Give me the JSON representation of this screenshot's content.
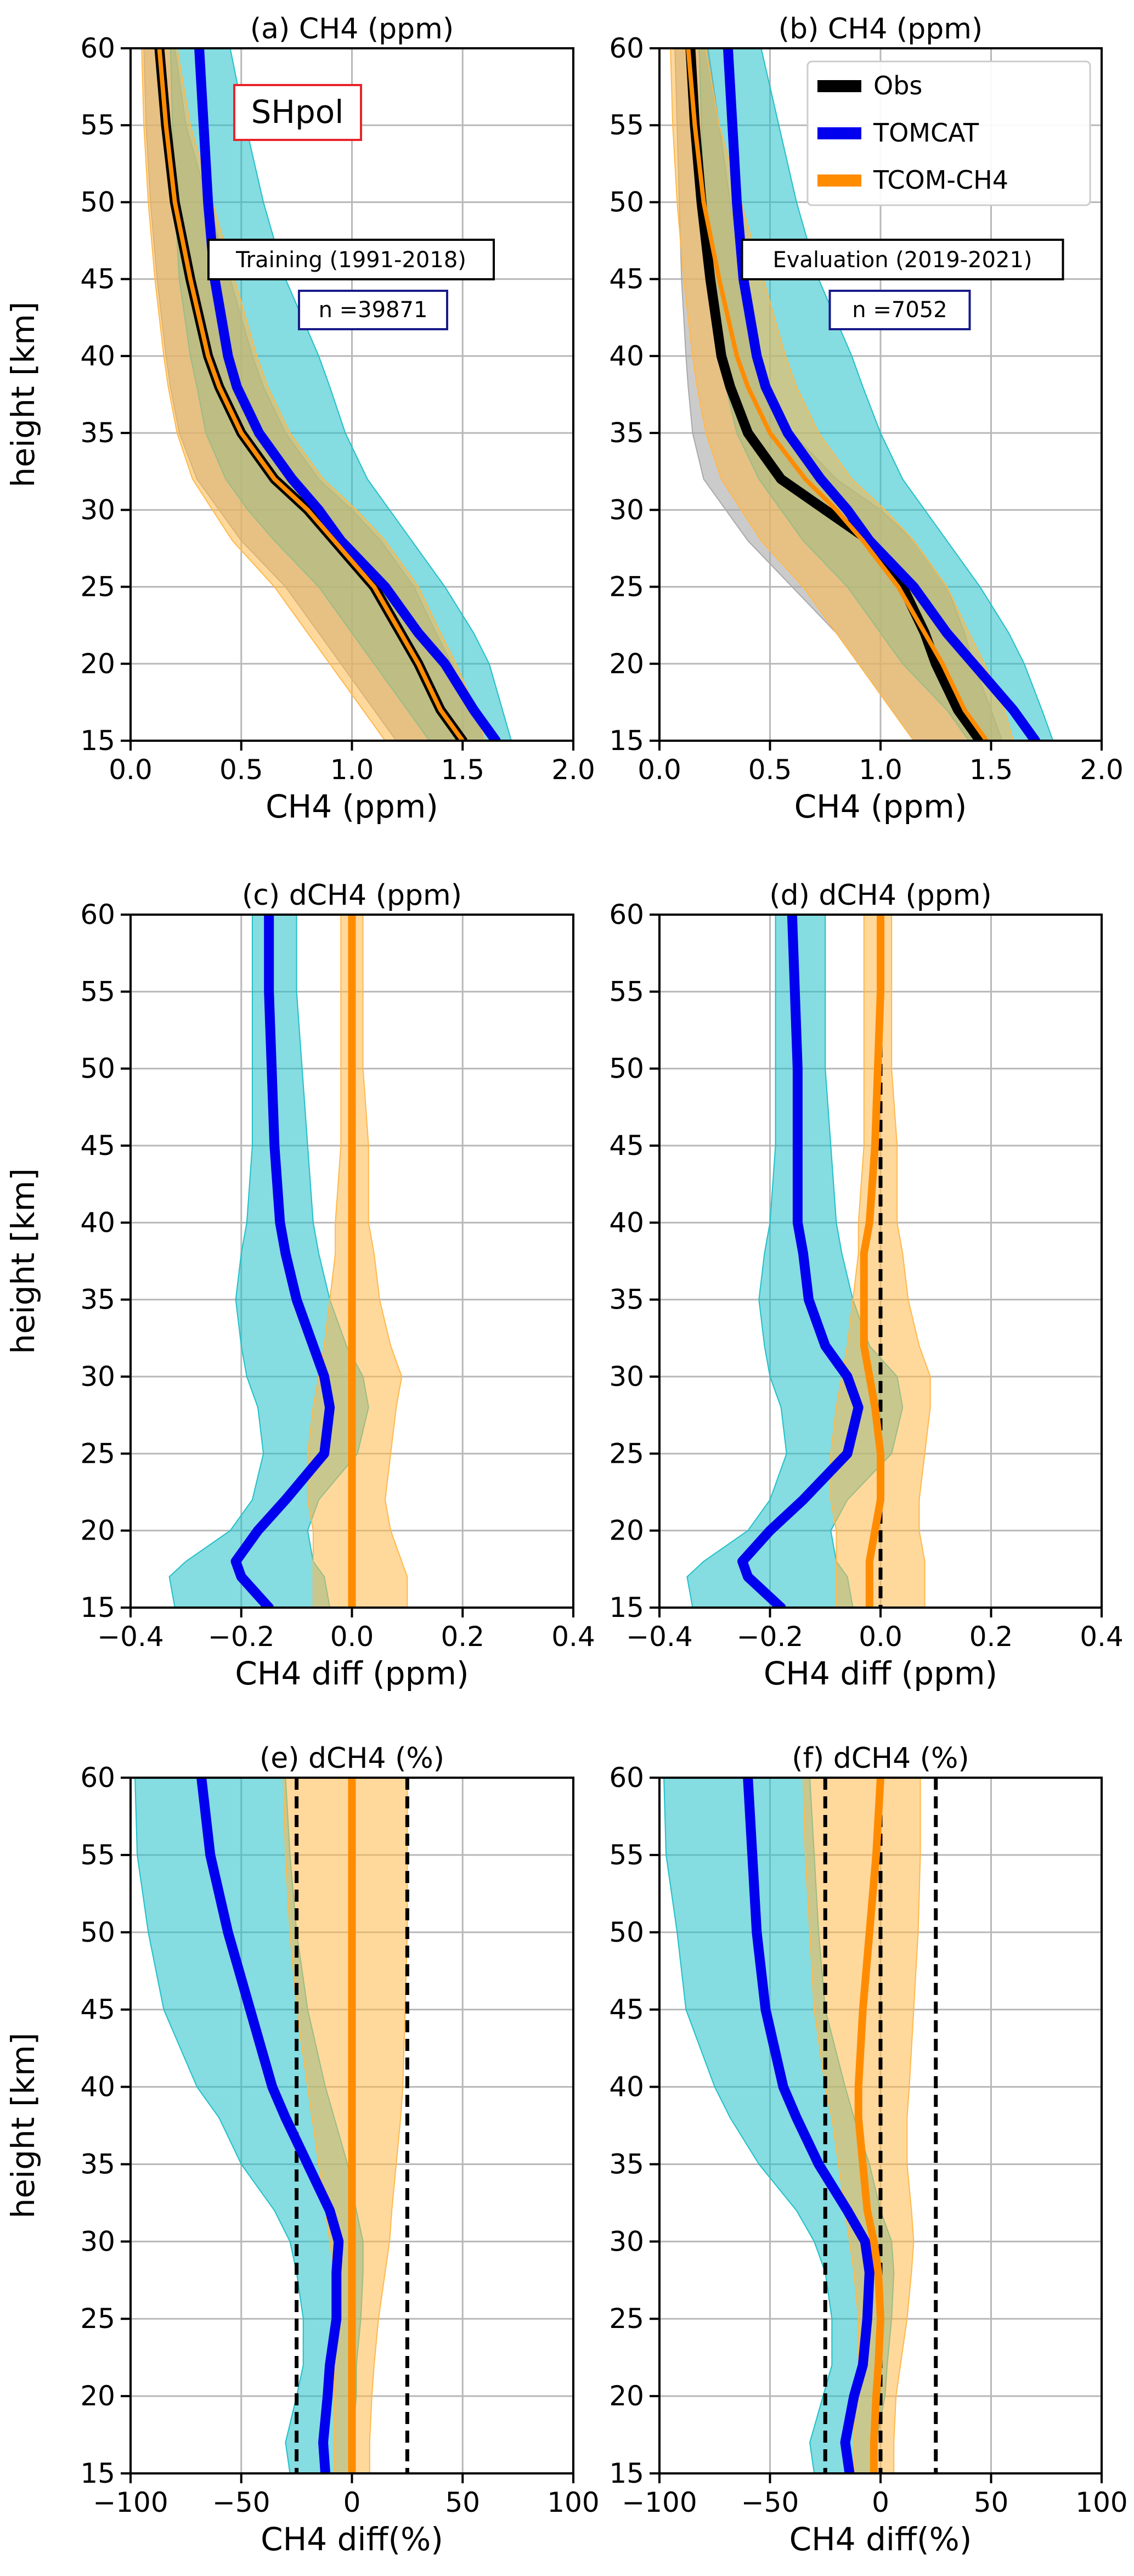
{
  "figure": {
    "region_label": "SHpol",
    "legend": [
      {
        "label": "Obs",
        "color": "#000000"
      },
      {
        "label": "TOMCAT",
        "color": "#0000ee"
      },
      {
        "label": "TCOM-CH4",
        "color": "#ff8c00"
      }
    ],
    "colors": {
      "obs": "#000000",
      "tomcat": "#0000ee",
      "tcom": "#ff8c00",
      "obs_band": "#a9a9a9",
      "tomcat_band": "#20c0c8",
      "tcom_band": "#ffb84a",
      "region_box": "#e8242a",
      "n_box": "#1a1a8a"
    }
  },
  "chart_data": [
    {
      "id": "a",
      "type": "line",
      "title": "(a) CH4 (ppm)",
      "xlabel": "CH4 (ppm)",
      "ylabel": "height [km]",
      "xlim": [
        0,
        2
      ],
      "ylim": [
        15,
        60
      ],
      "xticks": [
        0,
        0.5,
        1,
        1.5,
        2
      ],
      "xtick_labels": [
        "0.0",
        "0.5",
        "1.0",
        "1.5",
        "2.0"
      ],
      "yticks": [
        15,
        20,
        25,
        30,
        35,
        40,
        45,
        50,
        55,
        60
      ],
      "grid": true,
      "annotation": "Training (1991-2018)",
      "n_label": "n =39871",
      "heights": [
        15,
        17,
        20,
        22,
        25,
        28,
        30,
        32,
        35,
        38,
        40,
        45,
        50,
        55,
        60
      ],
      "series": [
        {
          "name": "Obs",
          "key": "obs",
          "values": [
            1.5,
            1.4,
            1.3,
            1.22,
            1.1,
            0.92,
            0.8,
            0.65,
            0.5,
            0.4,
            0.35,
            0.27,
            0.2,
            0.16,
            0.13
          ],
          "lower": [
            1.2,
            1.1,
            0.95,
            0.85,
            0.7,
            0.5,
            0.4,
            0.3,
            0.22,
            0.18,
            0.16,
            0.12,
            0.09,
            0.07,
            0.06
          ],
          "upper": [
            1.6,
            1.55,
            1.45,
            1.38,
            1.28,
            1.13,
            1.0,
            0.85,
            0.7,
            0.6,
            0.55,
            0.45,
            0.35,
            0.25,
            0.2
          ]
        },
        {
          "name": "TOMCAT",
          "key": "tomcat",
          "values": [
            1.65,
            1.55,
            1.42,
            1.3,
            1.15,
            0.95,
            0.85,
            0.73,
            0.58,
            0.48,
            0.44,
            0.38,
            0.35,
            0.33,
            0.31
          ],
          "lower": [
            1.35,
            1.25,
            1.1,
            1.0,
            0.85,
            0.65,
            0.53,
            0.43,
            0.34,
            0.3,
            0.27,
            0.22,
            0.2,
            0.19,
            0.18
          ],
          "upper": [
            1.72,
            1.68,
            1.62,
            1.55,
            1.42,
            1.27,
            1.17,
            1.07,
            0.97,
            0.9,
            0.85,
            0.7,
            0.6,
            0.52,
            0.45
          ]
        },
        {
          "name": "TCOM-CH4",
          "key": "tcom",
          "values": [
            1.5,
            1.4,
            1.3,
            1.22,
            1.1,
            0.92,
            0.8,
            0.65,
            0.5,
            0.4,
            0.35,
            0.27,
            0.2,
            0.16,
            0.13
          ],
          "lower": [
            1.15,
            1.05,
            0.9,
            0.8,
            0.65,
            0.46,
            0.37,
            0.28,
            0.21,
            0.17,
            0.15,
            0.11,
            0.08,
            0.06,
            0.05
          ],
          "upper": [
            1.6,
            1.56,
            1.47,
            1.4,
            1.3,
            1.15,
            1.02,
            0.87,
            0.72,
            0.62,
            0.57,
            0.47,
            0.37,
            0.27,
            0.21
          ]
        }
      ]
    },
    {
      "id": "b",
      "type": "line",
      "title": "(b) CH4 (ppm)",
      "xlabel": "CH4 (ppm)",
      "ylabel": "",
      "xlim": [
        0,
        2
      ],
      "ylim": [
        15,
        60
      ],
      "xticks": [
        0,
        0.5,
        1,
        1.5,
        2
      ],
      "xtick_labels": [
        "0.0",
        "0.5",
        "1.0",
        "1.5",
        "2.0"
      ],
      "yticks": [
        15,
        20,
        25,
        30,
        35,
        40,
        45,
        50,
        55,
        60
      ],
      "grid": true,
      "legend_position": "top-right",
      "annotation": "Evaluation (2019-2021)",
      "n_label": "n =7052",
      "heights": [
        15,
        17,
        20,
        22,
        25,
        28,
        30,
        32,
        35,
        38,
        40,
        45,
        50,
        55,
        60
      ],
      "series": [
        {
          "name": "Obs",
          "key": "obs",
          "values": [
            1.45,
            1.35,
            1.25,
            1.2,
            1.1,
            0.95,
            0.75,
            0.55,
            0.4,
            0.32,
            0.28,
            0.23,
            0.19,
            0.16,
            0.14
          ],
          "lower": [
            1.15,
            1.05,
            0.9,
            0.8,
            0.6,
            0.4,
            0.3,
            0.2,
            0.15,
            0.13,
            0.12,
            0.1,
            0.09,
            0.08,
            0.07
          ],
          "upper": [
            1.55,
            1.5,
            1.42,
            1.38,
            1.3,
            1.15,
            1.0,
            0.8,
            0.6,
            0.5,
            0.45,
            0.38,
            0.32,
            0.27,
            0.22
          ]
        },
        {
          "name": "TOMCAT",
          "key": "tomcat",
          "values": [
            1.7,
            1.6,
            1.42,
            1.3,
            1.15,
            0.95,
            0.85,
            0.73,
            0.58,
            0.48,
            0.44,
            0.38,
            0.35,
            0.33,
            0.31
          ],
          "lower": [
            1.4,
            1.3,
            1.1,
            1.0,
            0.85,
            0.65,
            0.55,
            0.45,
            0.35,
            0.3,
            0.27,
            0.22,
            0.2,
            0.19,
            0.18
          ],
          "upper": [
            1.78,
            1.73,
            1.65,
            1.58,
            1.45,
            1.3,
            1.2,
            1.1,
            1.0,
            0.92,
            0.87,
            0.72,
            0.62,
            0.54,
            0.46
          ]
        },
        {
          "name": "TCOM-CH4",
          "key": "tcom",
          "values": [
            1.48,
            1.38,
            1.28,
            1.2,
            1.08,
            0.92,
            0.8,
            0.66,
            0.5,
            0.4,
            0.35,
            0.27,
            0.2,
            0.16,
            0.13
          ],
          "lower": [
            1.15,
            1.05,
            0.9,
            0.8,
            0.65,
            0.46,
            0.37,
            0.28,
            0.21,
            0.17,
            0.15,
            0.11,
            0.08,
            0.06,
            0.05
          ],
          "upper": [
            1.6,
            1.56,
            1.47,
            1.4,
            1.3,
            1.15,
            1.02,
            0.87,
            0.72,
            0.62,
            0.57,
            0.47,
            0.37,
            0.27,
            0.21
          ]
        }
      ]
    },
    {
      "id": "c",
      "type": "line",
      "title": "(c) dCH4 (ppm)",
      "xlabel": "CH4 diff (ppm)",
      "ylabel": "height [km]",
      "xlim": [
        -0.4,
        0.4
      ],
      "ylim": [
        15,
        60
      ],
      "xticks": [
        -0.4,
        -0.2,
        0,
        0.2,
        0.4
      ],
      "xtick_labels": [
        "−0.4",
        "−0.2",
        "0.0",
        "0.2",
        "0.4"
      ],
      "yticks": [
        15,
        20,
        25,
        30,
        35,
        40,
        45,
        50,
        55,
        60
      ],
      "grid": true,
      "ref_lines": [
        0
      ],
      "heights": [
        15,
        17,
        18,
        20,
        22,
        25,
        28,
        30,
        32,
        35,
        38,
        40,
        45,
        50,
        55,
        60
      ],
      "series": [
        {
          "name": "TOMCAT",
          "key": "tomcat",
          "values": [
            -0.15,
            -0.2,
            -0.21,
            -0.17,
            -0.12,
            -0.05,
            -0.04,
            -0.05,
            -0.07,
            -0.1,
            -0.12,
            -0.13,
            -0.14,
            -0.145,
            -0.15,
            -0.15
          ],
          "lower": [
            -0.32,
            -0.33,
            -0.3,
            -0.22,
            -0.18,
            -0.16,
            -0.17,
            -0.19,
            -0.2,
            -0.21,
            -0.2,
            -0.19,
            -0.18,
            -0.18,
            -0.18,
            -0.18
          ],
          "upper": [
            -0.04,
            -0.05,
            -0.07,
            -0.08,
            -0.06,
            0.01,
            0.03,
            0.02,
            -0.01,
            -0.04,
            -0.06,
            -0.07,
            -0.08,
            -0.09,
            -0.1,
            -0.1
          ]
        },
        {
          "name": "TCOM-CH4",
          "key": "tcom",
          "values": [
            0.0,
            0.0,
            0.0,
            0.0,
            0.0,
            0.0,
            0.0,
            0.0,
            0.0,
            0.0,
            0.0,
            0.0,
            0.0,
            0.0,
            0.0,
            0.0
          ],
          "lower": [
            -0.07,
            -0.07,
            -0.07,
            -0.07,
            -0.08,
            -0.08,
            -0.07,
            -0.06,
            -0.05,
            -0.04,
            -0.03,
            -0.03,
            -0.02,
            -0.02,
            -0.02,
            -0.02
          ],
          "upper": [
            0.1,
            0.1,
            0.09,
            0.07,
            0.06,
            0.07,
            0.08,
            0.09,
            0.07,
            0.05,
            0.04,
            0.03,
            0.03,
            0.02,
            0.02,
            0.02
          ]
        }
      ]
    },
    {
      "id": "d",
      "type": "line",
      "title": "(d) dCH4 (ppm)",
      "xlabel": "CH4 diff (ppm)",
      "ylabel": "",
      "xlim": [
        -0.4,
        0.4
      ],
      "ylim": [
        15,
        60
      ],
      "xticks": [
        -0.4,
        -0.2,
        0,
        0.2,
        0.4
      ],
      "xtick_labels": [
        "−0.4",
        "−0.2",
        "0.0",
        "0.2",
        "0.4"
      ],
      "yticks": [
        15,
        20,
        25,
        30,
        35,
        40,
        45,
        50,
        55,
        60
      ],
      "grid": true,
      "ref_lines": [
        0
      ],
      "heights": [
        15,
        17,
        18,
        20,
        22,
        25,
        28,
        30,
        32,
        35,
        38,
        40,
        45,
        50,
        55,
        60
      ],
      "series": [
        {
          "name": "TOMCAT",
          "key": "tomcat",
          "values": [
            -0.18,
            -0.24,
            -0.25,
            -0.2,
            -0.14,
            -0.06,
            -0.04,
            -0.06,
            -0.1,
            -0.13,
            -0.14,
            -0.15,
            -0.15,
            -0.15,
            -0.155,
            -0.16
          ],
          "lower": [
            -0.34,
            -0.35,
            -0.32,
            -0.24,
            -0.2,
            -0.17,
            -0.18,
            -0.2,
            -0.21,
            -0.22,
            -0.21,
            -0.2,
            -0.19,
            -0.19,
            -0.19,
            -0.19
          ],
          "upper": [
            -0.05,
            -0.06,
            -0.08,
            -0.09,
            -0.06,
            0.02,
            0.04,
            0.03,
            -0.02,
            -0.05,
            -0.07,
            -0.08,
            -0.09,
            -0.1,
            -0.1,
            -0.1
          ]
        },
        {
          "name": "TCOM-CH4",
          "key": "tcom",
          "values": [
            -0.02,
            -0.02,
            -0.02,
            -0.01,
            0.0,
            0.0,
            -0.01,
            -0.02,
            -0.03,
            -0.03,
            -0.03,
            -0.02,
            -0.01,
            -0.005,
            0.0,
            0.0
          ],
          "lower": [
            -0.08,
            -0.08,
            -0.08,
            -0.08,
            -0.09,
            -0.09,
            -0.08,
            -0.07,
            -0.06,
            -0.05,
            -0.04,
            -0.04,
            -0.03,
            -0.03,
            -0.03,
            -0.03
          ],
          "upper": [
            0.08,
            0.08,
            0.08,
            0.07,
            0.07,
            0.08,
            0.09,
            0.09,
            0.07,
            0.05,
            0.04,
            0.03,
            0.03,
            0.02,
            0.02,
            0.02
          ]
        }
      ]
    },
    {
      "id": "e",
      "type": "line",
      "title": "(e) dCH4 (%)",
      "xlabel": "CH4 diff(%)",
      "ylabel": "height [km]",
      "xlim": [
        -100,
        100
      ],
      "ylim": [
        15,
        60
      ],
      "xticks": [
        -100,
        -50,
        0,
        50,
        100
      ],
      "xtick_labels": [
        "−100",
        "−50",
        "0",
        "50",
        "100"
      ],
      "yticks": [
        15,
        20,
        25,
        30,
        35,
        40,
        45,
        50,
        55,
        60
      ],
      "grid": true,
      "ref_lines": [
        -25,
        0,
        25
      ],
      "heights": [
        15,
        17,
        20,
        22,
        25,
        28,
        30,
        32,
        35,
        38,
        40,
        45,
        50,
        55,
        60
      ],
      "series": [
        {
          "name": "TOMCAT",
          "key": "tomcat",
          "values": [
            -12,
            -13,
            -11,
            -10,
            -7,
            -7,
            -6,
            -10,
            -20,
            -30,
            -36,
            -46,
            -56,
            -64,
            -68
          ],
          "lower": [
            -28,
            -30,
            -25,
            -22,
            -22,
            -25,
            -28,
            -35,
            -50,
            -60,
            -70,
            -85,
            -92,
            -97,
            -98
          ],
          "upper": [
            0,
            0,
            2,
            2,
            4,
            5,
            5,
            2,
            -2,
            -8,
            -12,
            -20,
            -25,
            -28,
            -30
          ]
        },
        {
          "name": "TCOM-CH4",
          "key": "tcom",
          "values": [
            0,
            0,
            0,
            0,
            0,
            0,
            0,
            0,
            0,
            0,
            0,
            0,
            0,
            0,
            0
          ],
          "lower": [
            -8,
            -8,
            -8,
            -8,
            -8,
            -8,
            -10,
            -12,
            -15,
            -18,
            -20,
            -25,
            -28,
            -30,
            -31
          ],
          "upper": [
            8,
            8,
            9,
            10,
            12,
            15,
            17,
            18,
            20,
            22,
            23,
            24,
            25,
            25,
            25
          ]
        }
      ]
    },
    {
      "id": "f",
      "type": "line",
      "title": "(f) dCH4 (%)",
      "xlabel": "CH4 diff(%)",
      "ylabel": "",
      "xlim": [
        -100,
        100
      ],
      "ylim": [
        15,
        60
      ],
      "xticks": [
        -100,
        -50,
        0,
        50,
        100
      ],
      "xtick_labels": [
        "−100",
        "−50",
        "0",
        "50",
        "100"
      ],
      "yticks": [
        15,
        20,
        25,
        30,
        35,
        40,
        45,
        50,
        55,
        60
      ],
      "grid": true,
      "ref_lines": [
        -25,
        0,
        25
      ],
      "heights": [
        15,
        17,
        20,
        22,
        25,
        28,
        30,
        32,
        35,
        38,
        40,
        45,
        50,
        55,
        60
      ],
      "series": [
        {
          "name": "TOMCAT",
          "key": "tomcat",
          "values": [
            -14,
            -16,
            -12,
            -8,
            -6,
            -5,
            -7,
            -15,
            -28,
            -38,
            -44,
            -52,
            -56,
            -58,
            -60
          ],
          "lower": [
            -30,
            -32,
            -26,
            -22,
            -22,
            -25,
            -30,
            -38,
            -55,
            -68,
            -75,
            -88,
            -92,
            -97,
            -98
          ],
          "upper": [
            -2,
            -2,
            2,
            3,
            5,
            6,
            5,
            0,
            -5,
            -12,
            -16,
            -25,
            -28,
            -30,
            -32
          ]
        },
        {
          "name": "TCOM-CH4",
          "key": "tcom",
          "values": [
            -3,
            -3,
            -2,
            -1,
            0,
            -1,
            -3,
            -6,
            -8,
            -10,
            -10,
            -8,
            -5,
            -2,
            0
          ],
          "lower": [
            -12,
            -12,
            -12,
            -10,
            -10,
            -12,
            -14,
            -16,
            -19,
            -22,
            -25,
            -30,
            -32,
            -34,
            -35
          ],
          "upper": [
            6,
            6,
            7,
            9,
            12,
            14,
            15,
            14,
            12,
            12,
            13,
            15,
            17,
            18,
            18
          ]
        }
      ]
    }
  ]
}
